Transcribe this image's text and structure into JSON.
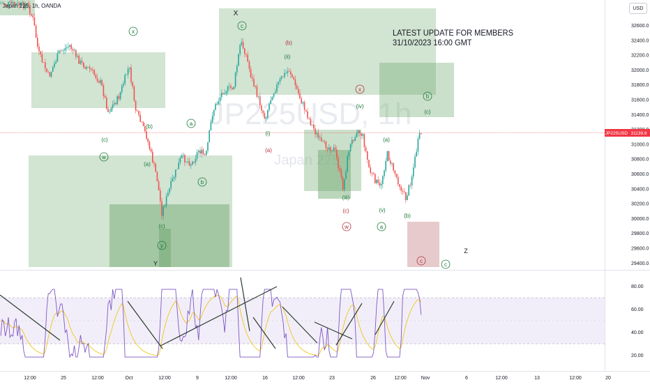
{
  "header": {
    "symbol_title": "Japan 225, 1h, OANDA",
    "currency": "USD",
    "watermark_symbol": "JP225USD, 1h",
    "watermark_name": "Japan 225"
  },
  "note": {
    "line1": "LATEST UPDATE FOR MEMBERS",
    "line2": "31/10/2023 16:00 GMT"
  },
  "price_axis": {
    "ticks": [
      "32600.0",
      "32400.0",
      "32200.0",
      "32000.0",
      "31800.0",
      "31600.0",
      "31400.0",
      "31200.0",
      "31000.0",
      "30800.0",
      "30600.0",
      "30400.0",
      "30200.0",
      "30000.0",
      "29800.0",
      "29600.0",
      "29400.0"
    ],
    "last_price_label": "JP225USD",
    "last_price_value": "31139.8",
    "last_price_color": "#f23645"
  },
  "rsi_axis": {
    "ticks": [
      "80.00",
      "60.00",
      "40.00",
      "20.00"
    ]
  },
  "time_axis": {
    "ticks": [
      "12:00",
      "25",
      "12:00",
      "Oct",
      "12:00",
      "9",
      "12:00",
      "16",
      "12:00",
      "23",
      "26",
      "12:00",
      "Nov",
      "6",
      "12:00",
      "13",
      "12:00",
      "20"
    ]
  },
  "wave_labels": {
    "x_top": "X",
    "c_circle_top": "c",
    "x_circle_left": "x",
    "c_left": "(c)",
    "w_circle_left": "w",
    "b_paren_1": "(b)",
    "a_paren_1": "(a)",
    "a_circle_1": "a",
    "b_circle_1": "b",
    "c_paren_low": "(c)",
    "y_circle": "y",
    "y_cap": "Y",
    "b_red_paren": "(b)",
    "ii_paren": "(ii)",
    "i_paren": "(i)",
    "a_red_paren": "(a)",
    "x_circle_red": "x",
    "iv_paren": "(iv)",
    "iii_paren": "(iii)",
    "c_red_paren": "(c)",
    "w_red_circle": "w",
    "a_paren_right": "(a)",
    "v_paren": "(v)",
    "a_circle_right": "a",
    "b_paren_right": "(b)",
    "b_circle_right": "b",
    "c_paren_right": "(c)",
    "z_cap": "Z",
    "c_circle_bottom": "c",
    "c_red_circle_bottom": "c"
  },
  "colors": {
    "up": "#26a69a",
    "down": "#ef5350",
    "box_fill": "#6aa56a",
    "rsi_line": "#7e57c2",
    "rsi_ma": "#f0c000",
    "rsi_band": "#7e57c2",
    "label_green": "#1b7a3a",
    "label_red": "#b2333b"
  }
}
